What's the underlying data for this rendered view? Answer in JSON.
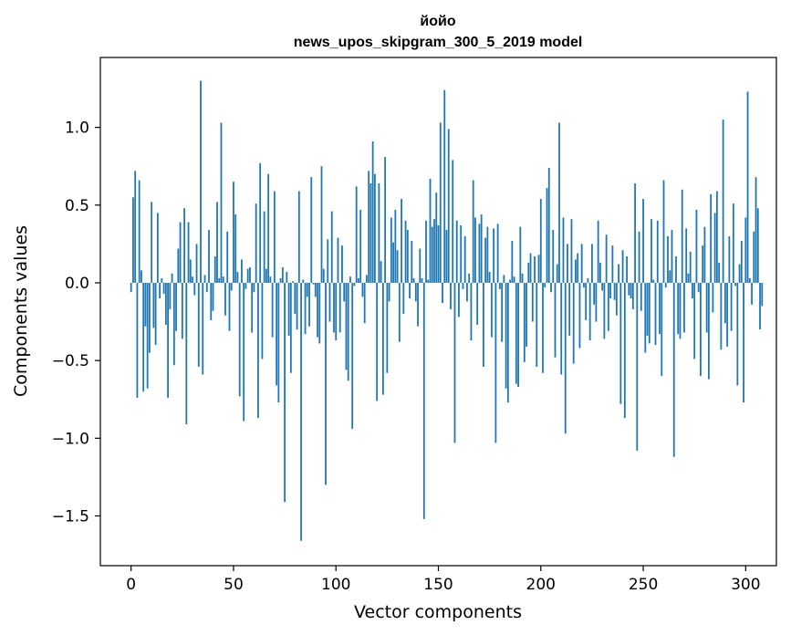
{
  "chart_data": {
    "type": "bar",
    "title": "йойо",
    "subtitle": "news_upos_skipgram_300_5_2019 model",
    "xlabel": "Vector components",
    "ylabel": "Components values",
    "xlim": [
      -15,
      315
    ],
    "ylim": [
      -1.82,
      1.45
    ],
    "x_ticks": [
      0,
      50,
      100,
      150,
      200,
      250,
      300
    ],
    "x_tick_labels": [
      "0",
      "50",
      "100",
      "150",
      "200",
      "250",
      "300"
    ],
    "y_ticks": [
      -1.5,
      -1.0,
      -0.5,
      0.0,
      0.5,
      1.0
    ],
    "y_tick_labels": [
      "−1.5",
      "−1.0",
      "−0.5",
      "0.0",
      "0.5",
      "1.0"
    ],
    "grid": false,
    "bar_color": "#1f77b4",
    "values": [
      -0.06,
      0.55,
      0.72,
      -0.74,
      0.66,
      0.08,
      -0.7,
      -0.28,
      -0.68,
      -0.45,
      0.52,
      -0.29,
      -0.4,
      0.45,
      -0.1,
      0.03,
      -0.07,
      -0.27,
      -0.74,
      -0.17,
      0.06,
      -0.53,
      -0.31,
      0.22,
      0.39,
      -0.36,
      0.48,
      -0.91,
      0.39,
      0.15,
      0.04,
      -0.08,
      0.25,
      -0.54,
      1.3,
      -0.59,
      0.05,
      -0.06,
      0.34,
      -0.24,
      -0.18,
      0.17,
      0.52,
      0.03,
      1.03,
      0.04,
      -0.21,
      0.33,
      -0.31,
      -0.05,
      0.65,
      0.44,
      0.07,
      -0.73,
      0.15,
      -0.89,
      -0.04,
      0.09,
      0.1,
      -0.32,
      -0.06,
      0.51,
      -0.87,
      0.77,
      -0.49,
      0.46,
      0.09,
      0.7,
      0.04,
      -0.35,
      0.59,
      -0.66,
      -0.77,
      0.03,
      0.1,
      -1.41,
      0.07,
      -0.34,
      -0.58,
      0.01,
      -0.2,
      -0.3,
      0.59,
      -1.66,
      0.02,
      -0.33,
      -0.09,
      -0.28,
      0.68,
      -0.01,
      -0.09,
      -0.35,
      -0.39,
      0.75,
      0.09,
      -1.3,
      0.28,
      -0.25,
      0.46,
      -0.32,
      -0.37,
      0.29,
      -0.32,
      0.24,
      -0.12,
      -0.56,
      -0.63,
      0.04,
      -0.94,
      -0.02,
      0.62,
      0.03,
      0.47,
      -0.09,
      -0.26,
      0.05,
      0.72,
      0.64,
      0.91,
      0.7,
      -0.76,
      0.64,
      0.14,
      -0.72,
      0.81,
      -0.58,
      -0.12,
      0.42,
      0.26,
      0.47,
      0.21,
      -0.38,
      0.54,
      -0.2,
      0.4,
      0.34,
      -0.1,
      0.27,
      0.03,
      -0.12,
      -0.28,
      0.22,
      0.03,
      -1.52,
      0.4,
      0.02,
      0.67,
      0.36,
      0.41,
      0.58,
      0.37,
      1.03,
      -0.13,
      1.24,
      0.34,
      0.99,
      -0.17,
      0.79,
      -1.03,
      0.4,
      -0.22,
      0.37,
      -0.04,
      0.3,
      -0.12,
      0.06,
      -0.37,
      0.66,
      0.42,
      -0.27,
      0.38,
      0.44,
      -0.54,
      0.29,
      0.36,
      0.07,
      -0.35,
      0.35,
      -1.03,
      0.38,
      -0.04,
      -0.38,
      0.05,
      -0.68,
      -0.77,
      0.02,
      0.27,
      0.04,
      -0.65,
      -0.67,
      0.36,
      0.06,
      -0.51,
      -0.41,
      0.13,
      0.19,
      -0.25,
      0.17,
      -0.54,
      0.18,
      0.54,
      -0.58,
      -0.03,
      0.61,
      0.74,
      -0.06,
      0.34,
      -0.48,
      0.12,
      1.03,
      -0.59,
      0.42,
      -0.97,
      0.25,
      -0.34,
      0.41,
      -0.52,
      0.15,
      0.19,
      -0.42,
      0.25,
      -0.03,
      -0.24,
      0.03,
      -0.37,
      0.25,
      -0.14,
      -0.25,
      0.4,
      0.13,
      -0.05,
      -0.36,
      0.31,
      -0.31,
      -0.1,
      0.24,
      -0.11,
      -0.21,
      0.12,
      -0.78,
      0.21,
      -0.87,
      0.17,
      -0.08,
      -0.1,
      -0.17,
      0.64,
      -1.08,
      0.33,
      -0.18,
      0.54,
      -0.45,
      -0.34,
      -0.39,
      0.41,
      0.02,
      -0.4,
      0.4,
      -0.33,
      -0.6,
      0.66,
      -0.03,
      0.3,
      0.08,
      0.34,
      -1.12,
      0.17,
      -0.33,
      -0.36,
      0.6,
      -0.32,
      0.35,
      0.06,
      0.2,
      -0.1,
      -0.49,
      0.47,
      -0.06,
      -0.6,
      0.24,
      0.36,
      -0.32,
      -0.62,
      0.57,
      -0.19,
      0.45,
      0.59,
      0.13,
      -0.43,
      1.05,
      -0.26,
      -0.41,
      0.3,
      -0.31,
      0.51,
      -0.02,
      -0.66,
      0.12,
      0.27,
      -0.77,
      0.42,
      1.23,
      0.03,
      -0.14,
      0.33,
      0.68,
      0.48,
      -0.3,
      -0.15
    ]
  }
}
